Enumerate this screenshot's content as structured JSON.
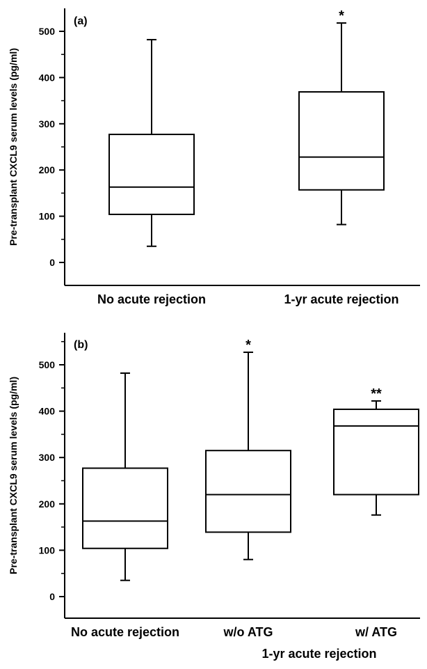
{
  "chart_data": [
    {
      "type": "box",
      "panel_label": "(a)",
      "ylabel": "Pre-transplant CXCL9 serum levels (pg/ml)",
      "ylim": [
        -50,
        550
      ],
      "yticks": [
        0,
        100,
        200,
        300,
        400,
        500
      ],
      "grid": false,
      "categories": [
        "No acute rejection",
        "1-yr acute rejection"
      ],
      "group_label": "",
      "boxes": [
        {
          "whisker_low": 35,
          "q1": 104,
          "median": 163,
          "q3": 277,
          "whisker_high": 482,
          "significance": ""
        },
        {
          "whisker_low": 82,
          "q1": 157,
          "median": 228,
          "q3": 369,
          "whisker_high": 518,
          "significance": "*"
        }
      ]
    },
    {
      "type": "box",
      "panel_label": "(b)",
      "ylabel": "Pre-transplant CXCL9 serum levels (pg/ml)",
      "ylim": [
        -50,
        550
      ],
      "yticks": [
        0,
        100,
        200,
        300,
        400,
        500
      ],
      "grid": false,
      "categories": [
        "No acute rejection",
        "w/o ATG",
        "w/ ATG"
      ],
      "group_label": "1-yr acute rejection",
      "boxes": [
        {
          "whisker_low": 35,
          "q1": 104,
          "median": 163,
          "q3": 277,
          "whisker_high": 482,
          "significance": ""
        },
        {
          "whisker_low": 80,
          "q1": 139,
          "median": 220,
          "q3": 315,
          "whisker_high": 527,
          "significance": "*"
        },
        {
          "whisker_low": 176,
          "q1": 220,
          "median": 368,
          "q3": 404,
          "whisker_high": 422,
          "significance": "**"
        }
      ]
    }
  ]
}
